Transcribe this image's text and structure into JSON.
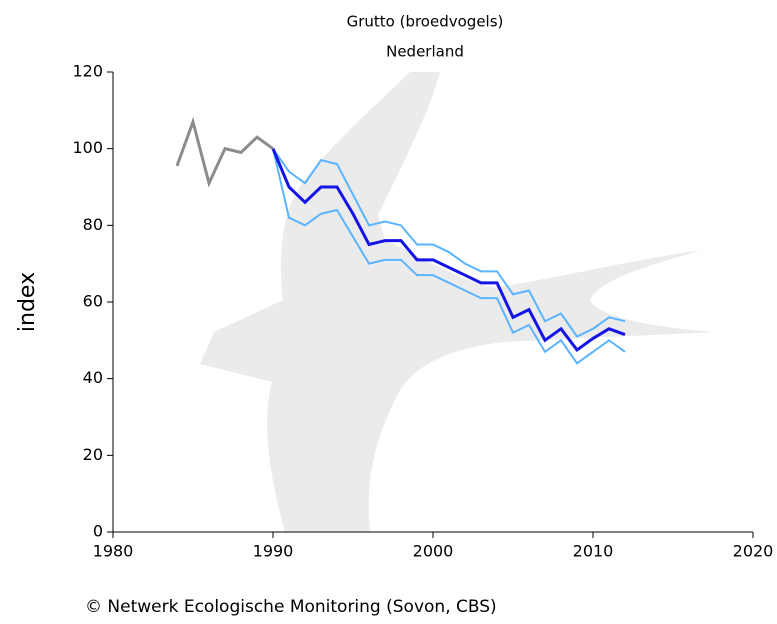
{
  "chart_data": {
    "type": "line",
    "title": "Grutto (broedvogels)",
    "subtitle": "Nederland",
    "ylabel": "index",
    "source": "© Netwerk Ecologische Monitoring (Sovon, CBS)",
    "x": [
      1984,
      1985,
      1986,
      1987,
      1988,
      1989,
      1990,
      1991,
      1992,
      1993,
      1994,
      1995,
      1996,
      1997,
      1998,
      1999,
      2000,
      2001,
      2002,
      2003,
      2004,
      2005,
      2006,
      2007,
      2008,
      2009,
      2010,
      2011,
      2012
    ],
    "series": [
      {
        "color": "#5ab4ff",
        "values": [
          null,
          null,
          null,
          null,
          null,
          null,
          100,
          94,
          91,
          97,
          96,
          88,
          80,
          81,
          80,
          75,
          75,
          73,
          70,
          68,
          68,
          62,
          63,
          55,
          57,
          51,
          53,
          56,
          55
        ]
      },
      {
        "color": "#5ab4ff",
        "values": [
          null,
          null,
          null,
          null,
          null,
          null,
          100,
          82,
          80,
          83,
          84,
          77,
          70,
          71,
          71,
          67,
          67,
          65,
          63,
          61,
          61,
          52,
          54,
          47,
          50,
          44,
          47,
          50,
          47
        ]
      },
      {
        "color": "#1414e6",
        "values": [
          null,
          null,
          null,
          null,
          null,
          null,
          100,
          90,
          86,
          90,
          90,
          83,
          75,
          76,
          76,
          71,
          71,
          69,
          67,
          65,
          65,
          56,
          58,
          50,
          53,
          47.5,
          50.5,
          53,
          51.5
        ]
      },
      {
        "color": "#8c8c8c",
        "values": [
          95.5,
          107,
          91,
          100,
          99,
          103,
          100,
          null,
          null,
          null,
          null,
          null,
          null,
          null,
          null,
          null,
          null,
          null,
          null,
          null,
          null,
          null,
          null,
          null,
          null,
          null,
          null,
          null,
          null
        ]
      }
    ],
    "xlim": [
      1980,
      2020
    ],
    "xticks": [
      1980,
      1990,
      2000,
      2010,
      2020
    ],
    "ylim": [
      0,
      120
    ],
    "yticks": [
      0,
      20,
      40,
      60,
      80,
      100,
      120
    ]
  }
}
